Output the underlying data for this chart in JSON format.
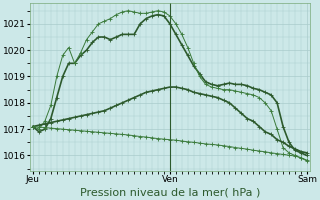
{
  "background_color": "#cce8e8",
  "grid_color": "#aacccc",
  "line_color_thick": "#2d5a2d",
  "line_color_thin": "#3a7a3a",
  "ylim": [
    1015.4,
    1021.8
  ],
  "yticks": [
    1016,
    1017,
    1018,
    1019,
    1020,
    1021
  ],
  "xlabel": "Pression niveau de la mer( hPa )",
  "xlabel_fontsize": 8,
  "tick_fontsize": 6.5,
  "series": [
    {
      "thick": true,
      "x": [
        0,
        1,
        2,
        3,
        4,
        5,
        6,
        7,
        8,
        9,
        10,
        11,
        12,
        13,
        14,
        15,
        16,
        17,
        18,
        19,
        20,
        21,
        22,
        23,
        24,
        25,
        26,
        27,
        28,
        29,
        30,
        31,
        32,
        33,
        34,
        35,
        36,
        37,
        38,
        39,
        40,
        41,
        42,
        43,
        44,
        45,
        46
      ],
      "y": [
        1017.1,
        1016.9,
        1017.0,
        1017.4,
        1018.2,
        1019.0,
        1019.5,
        1019.5,
        1019.8,
        1020.0,
        1020.3,
        1020.5,
        1020.5,
        1020.4,
        1020.5,
        1020.6,
        1020.6,
        1020.6,
        1021.0,
        1021.2,
        1021.3,
        1021.35,
        1021.3,
        1021.0,
        1020.6,
        1020.2,
        1019.8,
        1019.4,
        1019.1,
        1018.8,
        1018.7,
        1018.65,
        1018.7,
        1018.75,
        1018.7,
        1018.7,
        1018.65,
        1018.55,
        1018.5,
        1018.4,
        1018.3,
        1018.0,
        1017.1,
        1016.5,
        1016.2,
        1016.1,
        1016.0
      ]
    },
    {
      "thick": false,
      "x": [
        0,
        1,
        2,
        3,
        4,
        5,
        6,
        7,
        8,
        9,
        10,
        11,
        12,
        13,
        14,
        15,
        16,
        17,
        18,
        19,
        20,
        21,
        22,
        23,
        24,
        25,
        26,
        27,
        28,
        29,
        30,
        31,
        32,
        33,
        34,
        35,
        36,
        37,
        38,
        39,
        40,
        41,
        42,
        43,
        44,
        45,
        46
      ],
      "y": [
        1017.1,
        1017.0,
        1017.3,
        1017.9,
        1019.0,
        1019.8,
        1020.1,
        1019.5,
        1019.9,
        1020.4,
        1020.7,
        1021.0,
        1021.1,
        1021.2,
        1021.35,
        1021.45,
        1021.5,
        1021.45,
        1021.4,
        1021.4,
        1021.45,
        1021.5,
        1021.45,
        1021.3,
        1021.0,
        1020.6,
        1020.1,
        1019.5,
        1019.0,
        1018.7,
        1018.6,
        1018.55,
        1018.5,
        1018.5,
        1018.45,
        1018.4,
        1018.35,
        1018.3,
        1018.2,
        1018.0,
        1017.7,
        1017.0,
        1016.3,
        1016.1,
        1016.0,
        1015.9,
        1015.8
      ]
    },
    {
      "thick": true,
      "x": [
        0,
        1,
        2,
        3,
        4,
        5,
        6,
        7,
        8,
        9,
        10,
        11,
        12,
        13,
        14,
        15,
        16,
        17,
        18,
        19,
        20,
        21,
        22,
        23,
        24,
        25,
        26,
        27,
        28,
        29,
        30,
        31,
        32,
        33,
        34,
        35,
        36,
        37,
        38,
        39,
        40,
        41,
        42,
        43,
        44,
        45,
        46
      ],
      "y": [
        1017.1,
        1017.15,
        1017.2,
        1017.25,
        1017.3,
        1017.35,
        1017.4,
        1017.45,
        1017.5,
        1017.55,
        1017.6,
        1017.65,
        1017.7,
        1017.8,
        1017.9,
        1018.0,
        1018.1,
        1018.2,
        1018.3,
        1018.4,
        1018.45,
        1018.5,
        1018.55,
        1018.6,
        1018.6,
        1018.55,
        1018.5,
        1018.4,
        1018.35,
        1018.3,
        1018.25,
        1018.2,
        1018.1,
        1018.0,
        1017.8,
        1017.6,
        1017.4,
        1017.3,
        1017.1,
        1016.9,
        1016.8,
        1016.6,
        1016.5,
        1016.35,
        1016.25,
        1016.15,
        1016.1
      ]
    },
    {
      "thick": false,
      "x": [
        0,
        1,
        2,
        3,
        4,
        5,
        6,
        7,
        8,
        9,
        10,
        11,
        12,
        13,
        14,
        15,
        16,
        17,
        18,
        19,
        20,
        21,
        22,
        23,
        24,
        25,
        26,
        27,
        28,
        29,
        30,
        31,
        32,
        33,
        34,
        35,
        36,
        37,
        38,
        39,
        40,
        41,
        42,
        43,
        44,
        45,
        46
      ],
      "y": [
        1017.1,
        1017.08,
        1017.06,
        1017.04,
        1017.02,
        1017.0,
        1016.98,
        1016.96,
        1016.94,
        1016.92,
        1016.9,
        1016.88,
        1016.86,
        1016.84,
        1016.82,
        1016.8,
        1016.78,
        1016.75,
        1016.72,
        1016.7,
        1016.67,
        1016.64,
        1016.62,
        1016.6,
        1016.58,
        1016.55,
        1016.52,
        1016.5,
        1016.47,
        1016.44,
        1016.42,
        1016.4,
        1016.37,
        1016.34,
        1016.3,
        1016.27,
        1016.24,
        1016.2,
        1016.17,
        1016.14,
        1016.1,
        1016.07,
        1016.04,
        1016.01,
        1015.98,
        1015.92,
        1015.82
      ]
    }
  ],
  "vline_x": 23,
  "day_labels": [
    {
      "label": "Jeu",
      "x": 0
    },
    {
      "label": "Ven",
      "x": 23
    },
    {
      "label": "Sam",
      "x": 46
    }
  ]
}
